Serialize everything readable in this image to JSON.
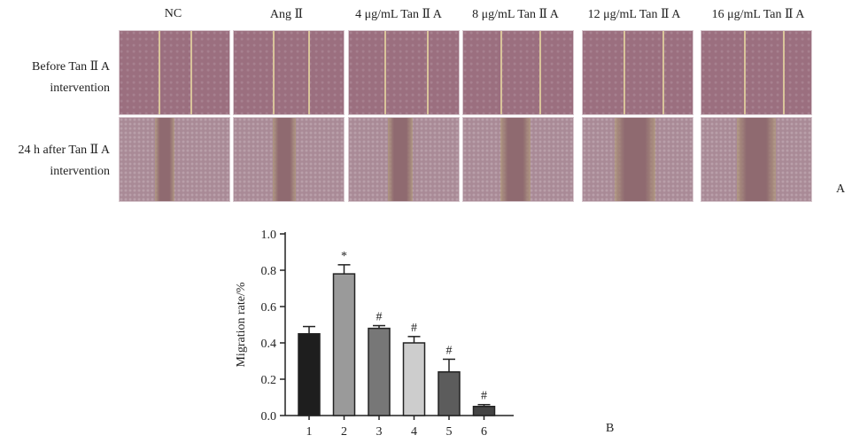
{
  "columns": [
    "NC",
    "Ang Ⅱ",
    "4 μg/mL Tan Ⅱ A",
    "8 μg/mL Tan Ⅱ A",
    "12 μg/mL Tan Ⅱ A",
    "16 μg/mL Tan Ⅱ A"
  ],
  "rows": [
    [
      "Before Tan Ⅱ A",
      "intervention"
    ],
    [
      "24 h after Tan Ⅱ A",
      "intervention"
    ]
  ],
  "panel_a_label": "A",
  "panel_b_label": "B",
  "colors": {
    "micro_before": "#9b6f7f",
    "micro_after": "#a98a96",
    "gap_after": "#8f6a70",
    "wound_line": "#d9c49a"
  },
  "chart_data": {
    "type": "bar",
    "categories": [
      "1",
      "2",
      "3",
      "4",
      "5",
      "6"
    ],
    "values": [
      0.45,
      0.78,
      0.48,
      0.4,
      0.24,
      0.05
    ],
    "errors": [
      0.04,
      0.05,
      0.015,
      0.035,
      0.07,
      0.01
    ],
    "annotations": [
      "",
      "*",
      "#",
      "#",
      "#",
      "#"
    ],
    "colors": [
      "#1e1e1e",
      "#9a9a9a",
      "#777777",
      "#cdcdcd",
      "#5c5c5c",
      "#444444"
    ],
    "xlabel": "",
    "ylabel": "Migration rate/%",
    "ylim": [
      0,
      1.0
    ],
    "yticks": [
      "0.0",
      "0.2",
      "0.4",
      "0.6",
      "0.8",
      "1.0"
    ]
  }
}
